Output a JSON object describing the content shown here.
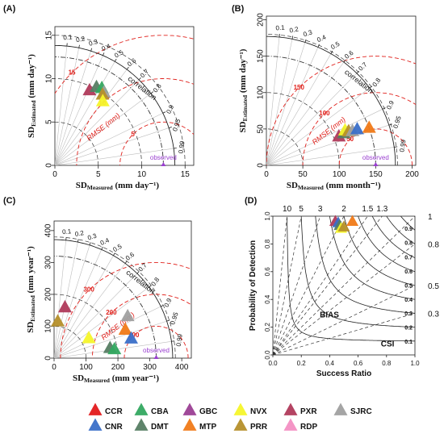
{
  "figure": {
    "legend": [
      {
        "label": "CCR",
        "color": "#e31a1c"
      },
      {
        "label": "CBA",
        "color": "#33a860"
      },
      {
        "label": "GBC",
        "color": "#9b3f94"
      },
      {
        "label": "NVX",
        "color": "#f5f52a"
      },
      {
        "label": "PXR",
        "color": "#b03a5b"
      },
      {
        "label": "SJRC",
        "color": "#a0a0a0"
      },
      {
        "label": "CNR",
        "color": "#3a6fc8"
      },
      {
        "label": "DMT",
        "color": "#567d63"
      },
      {
        "label": "MTP",
        "color": "#f07a18"
      },
      {
        "label": "PRR",
        "color": "#b58f2a"
      },
      {
        "label": "RDP",
        "color": "#f38fc3"
      }
    ],
    "common": {
      "correlation_title": "correlation",
      "rmse_title": "RMSE (mm)",
      "observed_label": "observed",
      "correlations": [
        "0.1",
        "0.2",
        "0.3",
        "0.4",
        "0.5",
        "0.6",
        "0.7",
        "0.8",
        "0.9",
        "0.95",
        "0.99"
      ],
      "corr_values": [
        0.1,
        0.2,
        0.3,
        0.4,
        0.5,
        0.6,
        0.7,
        0.8,
        0.9,
        0.95,
        0.99
      ]
    }
  },
  "chart_data": [
    {
      "type": "scatter",
      "kind": "taylor",
      "panel": "(A)",
      "ylabel_main": "SD",
      "ylabel_sub": "Estimated",
      "ylabel_unit": " (mm day⁻¹)",
      "xlabel_main": "SD",
      "xlabel_sub": "Measured",
      "xlabel_unit": " (mm day⁻¹)",
      "max": 16,
      "ticks": [
        0,
        5,
        10,
        15
      ],
      "tick_labels": [
        "0",
        "5",
        "10",
        "15"
      ],
      "ref_sd": 12.5,
      "rmse_levels": [
        5,
        10,
        15
      ],
      "rmse_labels": [
        "5",
        "10",
        "15"
      ],
      "sd_arcs": [
        5,
        10,
        12.5,
        15
      ],
      "points": [
        {
          "name": "PXR",
          "sd": 9.5,
          "r": 0.42
        },
        {
          "name": "DMT",
          "sd": 10.2,
          "r": 0.47
        },
        {
          "name": "CBA",
          "sd": 10.4,
          "r": 0.52
        },
        {
          "name": "SJRC",
          "sd": 10.1,
          "r": 0.56
        },
        {
          "name": "PRR",
          "sd": 9.8,
          "r": 0.56
        },
        {
          "name": "NVX",
          "sd": 9.2,
          "r": 0.6
        }
      ]
    },
    {
      "type": "scatter",
      "kind": "taylor",
      "panel": "(B)",
      "ylabel_main": "SD",
      "ylabel_sub": "Estimated",
      "ylabel_unit": " (mm day⁻¹)",
      "xlabel_main": "SD",
      "xlabel_sub": "Measured",
      "xlabel_unit": " (mm month⁻¹)",
      "max": 205,
      "ticks": [
        0,
        50,
        100,
        150,
        200
      ],
      "tick_labels": [
        "0",
        "50",
        "100",
        "150",
        "200"
      ],
      "ref_sd": 150,
      "rmse_levels": [
        50,
        100,
        150
      ],
      "rmse_labels": [
        "50",
        "100",
        "150"
      ],
      "sd_arcs": [
        50,
        100,
        150,
        180
      ],
      "points": [
        {
          "name": "PXR",
          "sd": 107,
          "r": 0.93
        },
        {
          "name": "DMT",
          "sd": 115,
          "r": 0.925
        },
        {
          "name": "NVX",
          "sd": 118,
          "r": 0.915
        },
        {
          "name": "PRR",
          "sd": 122,
          "r": 0.925
        },
        {
          "name": "SJRC",
          "sd": 127,
          "r": 0.93
        },
        {
          "name": "CNR",
          "sd": 134,
          "r": 0.93
        },
        {
          "name": "MTP",
          "sd": 150,
          "r": 0.94
        }
      ]
    },
    {
      "type": "scatter",
      "kind": "taylor",
      "panel": "(C)",
      "ylabel_main": "SD",
      "ylabel_sub": "Estimated",
      "ylabel_unit": " (mm year⁻¹)",
      "xlabel_main": "SD",
      "xlabel_sub": "Measured",
      "xlabel_unit": " (mm year⁻¹)",
      "max": 430,
      "ticks": [
        0,
        100,
        200,
        300,
        400
      ],
      "tick_labels": [
        "0",
        "100",
        "200",
        "300",
        "400"
      ],
      "ref_sd": 320,
      "rmse_levels": [
        100,
        200,
        300
      ],
      "rmse_labels": [
        "100",
        "200",
        "300"
      ],
      "sd_arcs": [
        100,
        200,
        320,
        380
      ],
      "points": [
        {
          "name": "PRR",
          "sd": 115,
          "r": 0.1
        },
        {
          "name": "PXR",
          "sd": 162,
          "r": 0.21
        },
        {
          "name": "NVX",
          "sd": 125,
          "r": 0.87
        },
        {
          "name": "DMT",
          "sd": 178,
          "r": 0.985
        },
        {
          "name": "CBA",
          "sd": 191,
          "r": 0.99
        },
        {
          "name": "MTP",
          "sd": 240,
          "r": 0.93
        },
        {
          "name": "CNR",
          "sd": 249,
          "r": 0.97
        },
        {
          "name": "SJRC",
          "sd": 265,
          "r": 0.87
        }
      ]
    },
    {
      "type": "scatter",
      "kind": "performance",
      "panel": "(D)",
      "xlabel": "Success Ratio",
      "ylabel": "Probability of Detection",
      "x_ticks": [
        "0.0",
        "0.2",
        "0.4",
        "0.6",
        "0.8",
        "1.0"
      ],
      "y_ticks": [
        "0.0",
        "0.2",
        "0.4",
        "0.6",
        "0.8",
        "1.0"
      ],
      "bias_values": [
        0.3,
        0.5,
        0.8,
        1,
        1.3,
        1.5,
        2,
        3,
        5,
        10
      ],
      "bias_top_labels": [
        "10",
        "5",
        "3",
        "2",
        "1.5",
        "1.3"
      ],
      "bias_right_labels": [
        "1",
        "0.8",
        "0.5",
        "0.3"
      ],
      "csi_values": [
        0.1,
        0.2,
        0.3,
        0.4,
        0.5,
        0.6,
        0.7,
        0.8,
        0.9
      ],
      "csi_labels": [
        "0.1",
        "0.2",
        "0.3",
        "0.4",
        "0.5",
        "0.6",
        "0.7",
        "0.8",
        "0.9"
      ],
      "bias_title": "BIAS",
      "csi_title": "CSI",
      "points": [
        {
          "name": "PXR",
          "sr": 0.44,
          "pod": 0.96
        },
        {
          "name": "CNR",
          "sr": 0.46,
          "pod": 0.95
        },
        {
          "name": "DMT",
          "sr": 0.47,
          "pod": 0.93
        },
        {
          "name": "NVX",
          "sr": 0.48,
          "pod": 0.91
        },
        {
          "name": "PRR",
          "sr": 0.5,
          "pod": 0.92
        },
        {
          "name": "MTP",
          "sr": 0.56,
          "pod": 0.96
        }
      ]
    }
  ]
}
